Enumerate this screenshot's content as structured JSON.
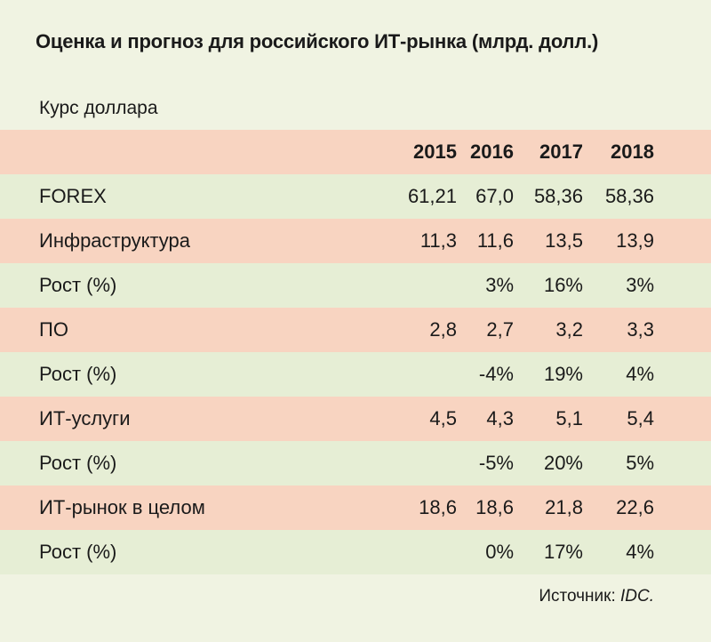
{
  "title": "Оценка и прогноз для российского ИТ-рынка (млрд. долл.)",
  "subtitle": "Курс доллара",
  "years": [
    "2015",
    "2016",
    "2017",
    "2018"
  ],
  "rows": [
    {
      "label": "FOREX",
      "values": [
        "61,21",
        "67,0",
        "58,36",
        "58,36"
      ]
    },
    {
      "label": "Инфраструктура",
      "values": [
        "11,3",
        "11,6",
        "13,5",
        "13,9"
      ]
    },
    {
      "label": "Рост (%)",
      "values": [
        "",
        "3%",
        "16%",
        "3%"
      ]
    },
    {
      "label": "ПО",
      "values": [
        "2,8",
        "2,7",
        "3,2",
        "3,3"
      ]
    },
    {
      "label": "Рост (%)",
      "values": [
        "",
        "-4%",
        "19%",
        "4%"
      ]
    },
    {
      "label": "ИТ-услуги",
      "values": [
        "4,5",
        "4,3",
        "5,1",
        "5,4"
      ]
    },
    {
      "label": "Рост (%)",
      "values": [
        "",
        "-5%",
        "20%",
        "5%"
      ]
    },
    {
      "label": "ИТ-рынок в целом",
      "values": [
        "18,6",
        "18,6",
        "21,8",
        "22,6"
      ]
    },
    {
      "label": "Рост (%)",
      "values": [
        "",
        "0%",
        "17%",
        "4%"
      ]
    }
  ],
  "source": {
    "prefix": "Источник: ",
    "name": "IDC."
  },
  "colors": {
    "background": "#f0f3e2",
    "pink_row": "#f8d4c1",
    "green_row": "#e6eed5"
  }
}
